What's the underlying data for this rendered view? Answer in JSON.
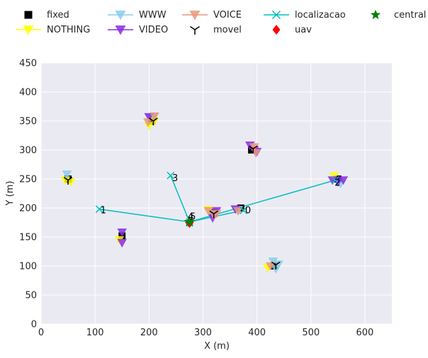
{
  "chart_data": {
    "type": "scatter",
    "xlabel": "X (m)",
    "ylabel": "Y (m)",
    "xlim": [
      0,
      650
    ],
    "ylim": [
      0,
      450
    ],
    "xticks": [
      0,
      100,
      200,
      300,
      400,
      500,
      600
    ],
    "yticks": [
      0,
      50,
      100,
      150,
      200,
      250,
      300,
      350,
      400,
      450
    ],
    "grid": true,
    "legend_position": "top",
    "legend": [
      {
        "name": "fixed",
        "marker": "square",
        "color": "#000000"
      },
      {
        "name": "NOTHING",
        "marker": "triangle-down",
        "color": "#ffff00"
      },
      {
        "name": "WWW",
        "marker": "triangle-down",
        "color": "#87ceeb"
      },
      {
        "name": "VIDEO",
        "marker": "triangle-down",
        "color": "#8a2be2"
      },
      {
        "name": "VOICE",
        "marker": "triangle-down",
        "color": "#e9967a"
      },
      {
        "name": "movel",
        "marker": "tri-down",
        "color": "#000000"
      },
      {
        "name": "localizacao",
        "marker": "x",
        "color": "#00bfbf"
      },
      {
        "name": "uav",
        "marker": "diamond",
        "color": "#ff0000"
      },
      {
        "name": "central",
        "marker": "star",
        "color": "#008000"
      }
    ],
    "series": [
      {
        "name": "fixed",
        "points": [
          [
            50,
            250
          ],
          [
            150,
            152
          ],
          [
            205,
            350
          ],
          [
            390,
            300
          ],
          [
            370,
            200
          ],
          [
            550,
            250
          ],
          [
            432,
            100
          ],
          [
            320,
            192
          ]
        ]
      },
      {
        "name": "NOTHING",
        "points": [
          [
            45,
            248
          ],
          [
            55,
            245
          ],
          [
            145,
            145
          ],
          [
            200,
            342
          ],
          [
            210,
            350
          ],
          [
            420,
            97
          ],
          [
            310,
            197
          ],
          [
            543,
            255
          ]
        ]
      },
      {
        "name": "WWW",
        "points": [
          [
            48,
            258
          ],
          [
            200,
            357
          ],
          [
            210,
            358
          ],
          [
            430,
            108
          ],
          [
            440,
            103
          ],
          [
            435,
            95
          ],
          [
            555,
            242
          ],
          [
            318,
            190
          ],
          [
            365,
            197
          ]
        ]
      },
      {
        "name": "VIDEO",
        "points": [
          [
            150,
            158
          ],
          [
            150,
            140
          ],
          [
            200,
            357
          ],
          [
            387,
            308
          ],
          [
            395,
            300
          ],
          [
            400,
            297
          ],
          [
            540,
            248
          ],
          [
            550,
            245
          ],
          [
            560,
            248
          ],
          [
            318,
            183
          ],
          [
            325,
            195
          ],
          [
            360,
            198
          ]
        ]
      },
      {
        "name": "VOICE",
        "points": [
          [
            198,
            348
          ],
          [
            210,
            358
          ],
          [
            395,
            305
          ],
          [
            398,
            295
          ],
          [
            425,
            100
          ],
          [
            310,
            195
          ],
          [
            320,
            188
          ],
          [
            325,
            190
          ],
          [
            365,
            195
          ]
        ]
      },
      {
        "name": "movel",
        "points": [
          [
            50,
            248
          ],
          [
            208,
            350
          ],
          [
            393,
            302
          ],
          [
            435,
            102
          ],
          [
            320,
            190
          ]
        ]
      },
      {
        "name": "uav",
        "points": [
          [
            275,
            175
          ]
        ]
      },
      {
        "name": "central",
        "points": [
          [
            275,
            176
          ]
        ]
      }
    ],
    "localizacao": {
      "points": [
        [
          108,
          198
        ],
        [
          240,
          256
        ],
        [
          275,
          176
        ],
        [
          275,
          182
        ],
        [
          545,
          248
        ],
        [
          375,
          196
        ]
      ],
      "labels": [
        {
          "text": "0",
          "x": 378,
          "y": 196
        },
        {
          "text": "1",
          "x": 110,
          "y": 196
        },
        {
          "text": "2",
          "x": 544,
          "y": 243
        },
        {
          "text": "3",
          "x": 243,
          "y": 251
        },
        {
          "text": "4",
          "x": 272,
          "y": 185
        },
        {
          "text": "5",
          "x": 276,
          "y": 185
        }
      ],
      "lines": [
        [
          [
            108,
            198
          ],
          [
            275,
            176
          ]
        ],
        [
          [
            240,
            256
          ],
          [
            275,
            176
          ]
        ],
        [
          [
            275,
            176
          ],
          [
            545,
            248
          ]
        ],
        [
          [
            275,
            176
          ],
          [
            375,
            196
          ]
        ]
      ]
    }
  }
}
